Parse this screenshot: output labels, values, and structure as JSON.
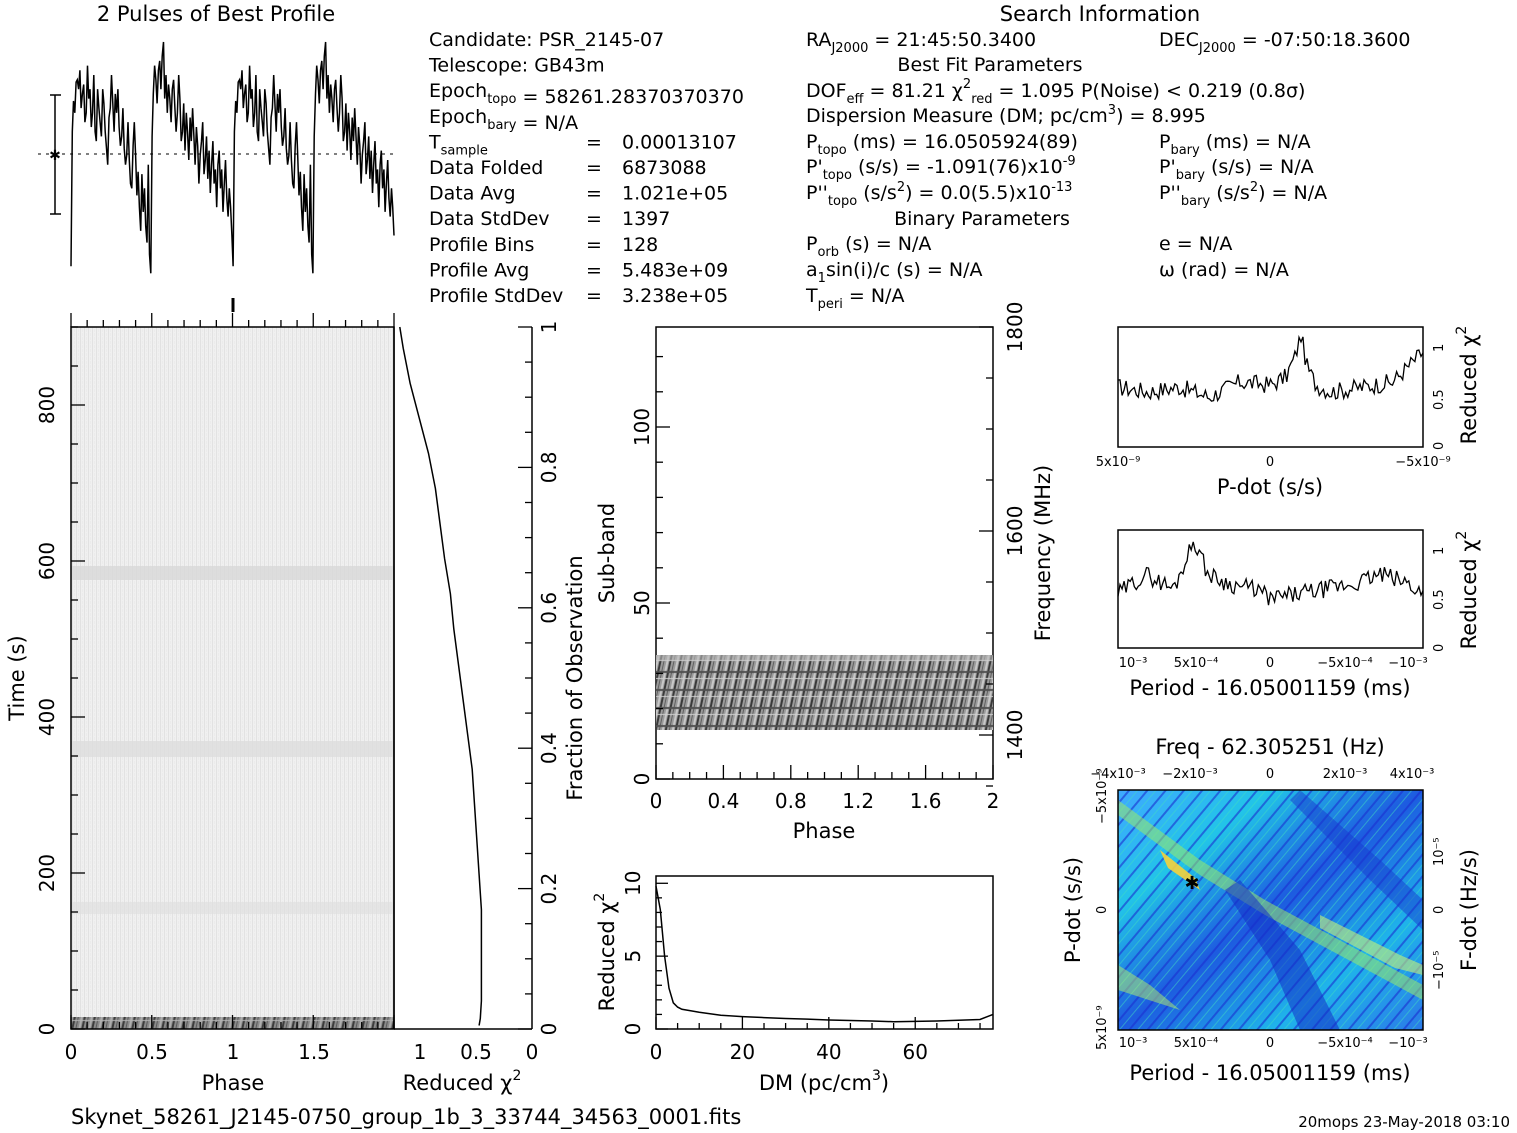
{
  "headers": {
    "profile_title": "2 Pulses of Best Profile",
    "search_title": "Search Information"
  },
  "candidate": {
    "rows": [
      {
        "label": "Candidate:",
        "value": "PSR_2145-07"
      },
      {
        "label": "Telescope:",
        "value": "GB43m"
      },
      {
        "label": "Epoch",
        "sub": "topo",
        "value": "= 58261.28370370370"
      },
      {
        "label": "Epoch",
        "sub": "bary",
        "value": "= N/A"
      },
      {
        "label": "T",
        "sub": "sample",
        "eq": "=",
        "value": "0.00013107"
      },
      {
        "label": "Data Folded",
        "eq": "=",
        "value": "6873088"
      },
      {
        "label": "Data Avg",
        "eq": "=",
        "value": "1.021e+05"
      },
      {
        "label": "Data StdDev",
        "eq": "=",
        "value": "1397"
      },
      {
        "label": "Profile Bins",
        "eq": "=",
        "value": "128"
      },
      {
        "label": "Profile Avg",
        "eq": "=",
        "value": "5.483e+09"
      },
      {
        "label": "Profile StdDev",
        "eq": "=",
        "value": "3.238e+05"
      }
    ]
  },
  "search": {
    "ra": "21:45:50.3400",
    "dec": "-07:50:18.3600",
    "best_fit_title": "Best Fit Parameters",
    "dof_eff": "81.21",
    "chi2_red": "1.095",
    "p_noise": "< 0.219",
    "sigma": "(0.8σ)",
    "dm": "8.995",
    "p_topo": "16.0505924(89)",
    "pdot_topo": "-1.091(76)",
    "pdot_exp": "-9",
    "pddot_topo": "0.0(5.5)",
    "pddot_exp": "-13",
    "p_bary": "N/A",
    "pdot_bary": "N/A",
    "pddot_bary": "N/A",
    "binary_title": "Binary Parameters",
    "p_orb": "N/A",
    "a1sini": "N/A",
    "t_peri": "N/A",
    "e": "N/A",
    "omega": "N/A"
  },
  "axes": {
    "phase": "Phase",
    "time": "Time (s)",
    "reduced_chi2": "Reduced χ",
    "fraction": "Fraction of Observation",
    "subband": "Sub-band",
    "frequency": "Frequency (MHz)",
    "dm": "DM (pc/cm",
    "pdot": "P-dot (s/s)",
    "period": "Period - 16.05001159 (ms)",
    "freq_top": "Freq - 62.305251 (Hz)",
    "fdot": "F-dot (Hz/s)"
  },
  "footer": {
    "filename": "Skynet_58261_J2145-0750_group_1b_3_33744_34563_0001.fits",
    "stamp": "20mops 23-May-2018 03:10"
  },
  "chart_data": [
    {
      "type": "line",
      "name": "profile",
      "x_range": [
        0,
        2
      ],
      "bins": 128,
      "values": [
        0.05,
        0.62,
        0.75,
        0.7,
        0.83,
        0.84,
        0.8,
        0.88,
        0.72,
        0.78,
        0.82,
        0.66,
        0.7,
        0.9,
        0.76,
        0.8,
        0.64,
        0.7,
        0.86,
        0.62,
        0.58,
        0.8,
        0.72,
        0.66,
        0.6,
        0.8,
        0.74,
        0.62,
        0.55,
        0.48,
        0.68,
        0.72,
        0.86,
        0.74,
        0.62,
        0.78,
        0.7,
        0.8,
        0.64,
        0.56,
        0.6,
        0.72,
        0.55,
        0.48,
        0.52,
        0.66,
        0.5,
        0.4,
        0.38,
        0.56,
        0.66,
        0.52,
        0.35,
        0.45,
        0.3,
        0.2,
        0.44,
        0.28,
        0.38,
        0.22,
        0.15,
        0.48,
        0.1,
        0.02,
        0.6,
        0.78,
        0.9,
        0.84,
        0.74,
        0.88,
        0.92,
        0.8,
        0.94,
        1.0,
        0.76,
        0.86,
        0.7,
        0.82,
        0.76,
        0.66,
        0.8,
        0.84,
        0.72,
        0.62,
        0.7,
        0.86,
        0.76,
        0.58,
        0.62,
        0.74,
        0.54,
        0.7,
        0.62,
        0.5,
        0.68,
        0.58,
        0.72,
        0.6,
        0.48,
        0.64,
        0.56,
        0.4,
        0.52,
        0.58,
        0.66,
        0.44,
        0.5,
        0.6,
        0.42,
        0.54,
        0.36,
        0.48,
        0.58,
        0.4,
        0.46,
        0.3,
        0.48,
        0.54,
        0.38,
        0.46,
        0.28,
        0.4,
        0.5,
        0.34,
        0.26,
        0.38,
        0.3,
        0.18
      ]
    },
    {
      "type": "line",
      "name": "reduced_chi2_vs_time",
      "xlim": [
        1.2,
        0
      ],
      "ylim": [
        0,
        1
      ],
      "x": [
        1.15,
        1.12,
        1.06,
        0.98,
        0.9,
        0.84,
        0.8,
        0.76,
        0.71,
        0.68,
        0.64,
        0.6,
        0.56,
        0.52,
        0.5,
        0.48,
        0.46,
        0.44,
        0.44,
        0.44,
        0.44,
        0.45,
        0.46
      ],
      "y": [
        1.0,
        0.97,
        0.92,
        0.87,
        0.82,
        0.77,
        0.72,
        0.67,
        0.62,
        0.57,
        0.52,
        0.47,
        0.42,
        0.37,
        0.32,
        0.27,
        0.22,
        0.17,
        0.12,
        0.07,
        0.04,
        0.015,
        0.005
      ]
    },
    {
      "type": "line",
      "name": "dm_curve",
      "xlabel": "DM (pc/cm3)",
      "ylabel": "Reduced chi2",
      "xlim": [
        0,
        78
      ],
      "ylim": [
        0,
        10.5
      ],
      "x": [
        0,
        1,
        2,
        3,
        4,
        5,
        6,
        8,
        10,
        15,
        20,
        25,
        30,
        35,
        40,
        45,
        50,
        55,
        60,
        65,
        70,
        75,
        78
      ],
      "y": [
        9.8,
        8.2,
        5.0,
        2.8,
        1.8,
        1.5,
        1.35,
        1.25,
        1.15,
        0.95,
        0.85,
        0.78,
        0.72,
        0.68,
        0.62,
        0.58,
        0.55,
        0.5,
        0.52,
        0.55,
        0.6,
        0.65,
        1.0
      ]
    },
    {
      "type": "line",
      "name": "chi2_vs_pdot",
      "xlim": [
        5e-09,
        -5e-09
      ],
      "ylim": [
        0,
        1.2
      ],
      "x": [
        5e-09,
        4e-09,
        3e-09,
        2e-09,
        1e-09,
        0,
        -5e-10,
        -8e-10,
        -1e-09,
        -1.2e-09,
        -1.5e-09,
        -2e-09,
        -3e-09,
        -4e-09,
        -5e-09
      ],
      "y": [
        0.6,
        0.55,
        0.6,
        0.5,
        0.65,
        0.62,
        0.7,
        0.9,
        1.12,
        0.8,
        0.62,
        0.55,
        0.6,
        0.65,
        0.95
      ]
    },
    {
      "type": "line",
      "name": "chi2_vs_period",
      "xlim": [
        0.0011,
        -0.0011
      ],
      "ylim": [
        0,
        1.2
      ],
      "x": [
        0.0011,
        0.0009,
        0.0007,
        0.00055,
        0.00045,
        0.0003,
        0.0001,
        0,
        -0.0002,
        -0.0004,
        -0.0006,
        -0.0008,
        -0.001,
        -0.0011
      ],
      "y": [
        0.55,
        0.75,
        0.6,
        1.1,
        0.75,
        0.65,
        0.6,
        0.5,
        0.55,
        0.6,
        0.65,
        0.75,
        0.65,
        0.55
      ]
    },
    {
      "type": "heatmap",
      "name": "ppdot_plane",
      "xlim": [
        0.0011,
        -0.0011
      ],
      "ylim": [
        5e-09,
        -5e-09
      ],
      "best_fit": [
        0.0005,
        -1.1e-09
      ]
    }
  ]
}
